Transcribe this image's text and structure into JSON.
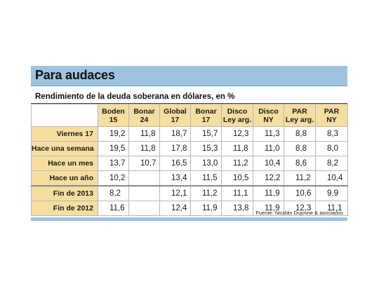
{
  "title": "Para audaces",
  "subtitle": "Rendimiento de la deuda soberana en dólares, en %",
  "columns": [
    {
      "line1": "Boden",
      "line2": "15"
    },
    {
      "line1": "Bonar",
      "line2": "24"
    },
    {
      "line1": "Global",
      "line2": "17"
    },
    {
      "line1": "Bonar",
      "line2": "17"
    },
    {
      "line1": "Disco",
      "line2": "Ley arg."
    },
    {
      "line1": "Disco",
      "line2": "NY"
    },
    {
      "line1": "PAR",
      "line2": "Ley arg."
    },
    {
      "line1": "PAR",
      "line2": "NY"
    }
  ],
  "rows": [
    {
      "label": "Viernes 17",
      "values": [
        "19,2",
        "11,8",
        "18,7",
        "15,7",
        "12,3",
        "11,3",
        "8,8",
        "8,3"
      ]
    },
    {
      "label": "Hace una semana",
      "values": [
        "19,5",
        "11,8",
        "17,8",
        "15,3",
        "11,8",
        "11,0",
        "8,8",
        "8,0"
      ]
    },
    {
      "label": "Hace un mes",
      "values": [
        "13,7",
        "10,7",
        "16,5",
        "13,0",
        "11,2",
        "10,4",
        "8,6",
        "8,2"
      ]
    },
    {
      "label": "Hace un año",
      "values": [
        "10,2",
        "",
        "13,4",
        "11,5",
        "10,5",
        "12,2",
        "11,2",
        "10,4"
      ]
    },
    {
      "label": "Fin de 2013",
      "values": [
        "8,2",
        "",
        "12,1",
        "11,2",
        "11,1",
        "11,9",
        "10,6",
        "9,9"
      ]
    },
    {
      "label": "Fin de 2012",
      "values": [
        "11,6",
        "",
        "12,4",
        "11,9",
        "13,8",
        "11,9",
        "12,3",
        "11,1"
      ]
    }
  ],
  "source": "Fuente: Nicolás Dujovne & asociados",
  "colors": {
    "header_bar": "#9ec3de",
    "label_fill": "#f5dea0"
  }
}
